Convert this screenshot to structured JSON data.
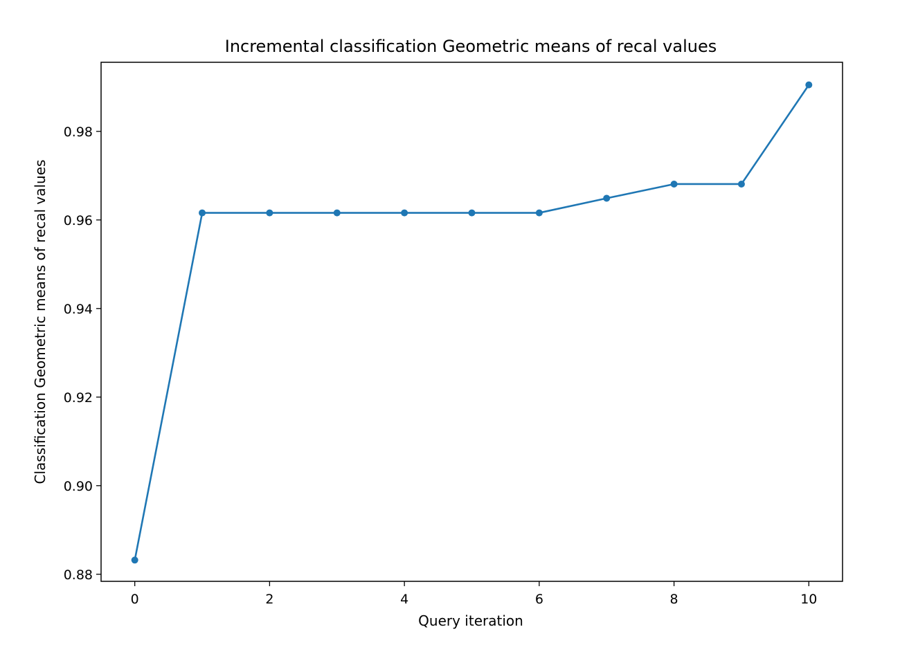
{
  "chart_data": {
    "type": "line",
    "title": "Incremental classification Geometric means of recal values",
    "xlabel": "Query iteration",
    "ylabel": "Classification Geometric means of recal values",
    "xlim": [
      -0.5,
      10.5
    ],
    "ylim": [
      0.8784,
      0.9956
    ],
    "xticks": [
      0,
      2,
      4,
      6,
      8,
      10
    ],
    "yticks": [
      0.88,
      0.9,
      0.92,
      0.94,
      0.96,
      0.98
    ],
    "ytick_labels": [
      "0.88",
      "0.90",
      "0.92",
      "0.94",
      "0.96",
      "0.98"
    ],
    "grid": false,
    "series": [
      {
        "color": "#1f77b4",
        "x": [
          0,
          1,
          2,
          3,
          4,
          5,
          6,
          7,
          8,
          9,
          10
        ],
        "y": [
          0.8832,
          0.9616,
          0.9616,
          0.9616,
          0.9616,
          0.9616,
          0.9616,
          0.9649,
          0.9681,
          0.9681,
          0.9905
        ]
      }
    ]
  }
}
